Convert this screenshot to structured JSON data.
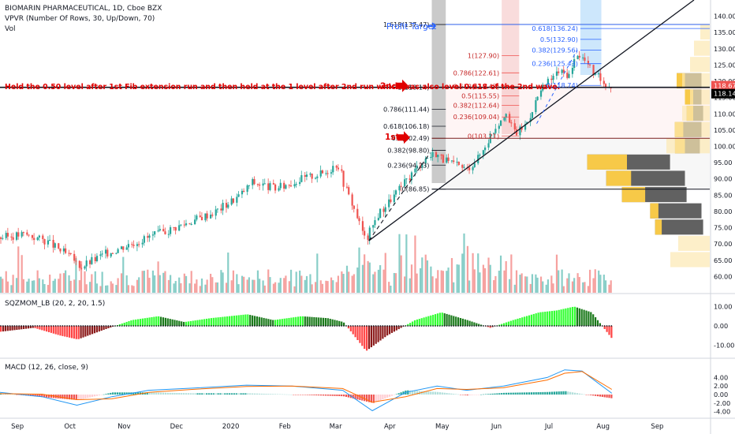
{
  "header": {
    "title": "BIOMARIN PHARMACEUTICAL, 1D, Cboe BZX",
    "vpvr": "VPVR (Number Of Rows, 30, Up/Down, 70)",
    "vol": "Vol"
  },
  "annotation": "Held the 0.50 level after 1st Fib extension run and then held at the 1 level after 2nd run which was also level 0.618 of the 2nd wave.",
  "markers": {
    "first": "1st",
    "second": "2nd",
    "target": "Profit Target"
  },
  "colors": {
    "up": "#26a69a",
    "down": "#ef5350",
    "red_text": "#e00000",
    "blue_text": "#2962ff"
  },
  "chart_data": [
    {
      "type": "candlestick",
      "title": "BIOMARIN PHARMACEUTICAL, 1D, Cboe BZX",
      "ylim": [
        55,
        145
      ],
      "yticks": [
        "60.00",
        "65.00",
        "70.00",
        "75.00",
        "80.00",
        "85.00",
        "90.00",
        "95.00",
        "100.00",
        "105.00",
        "110.00",
        "115.00",
        "120.00",
        "125.00",
        "130.00",
        "135.00",
        "140.00"
      ],
      "y_axis_step": 5,
      "x_tick_labels": [
        "Sep",
        "Oct",
        "Nov",
        "Dec",
        "2020",
        "Feb",
        "Mar",
        "Apr",
        "May",
        "Jun",
        "Jul",
        "Aug",
        "Sep"
      ],
      "price_badges": [
        {
          "value": "118.67",
          "color": "#ef5350"
        },
        {
          "value": "118.14",
          "color": "#000000"
        }
      ],
      "price_path": [
        [
          "2019-08-22",
          72
        ],
        [
          "2019-09-05",
          73
        ],
        [
          "2019-09-17",
          71
        ],
        [
          "2019-10-01",
          66
        ],
        [
          "2019-10-07",
          63
        ],
        [
          "2019-10-21",
          67
        ],
        [
          "2019-11-04",
          70
        ],
        [
          "2019-11-25",
          74
        ],
        [
          "2019-12-09",
          77
        ],
        [
          "2019-12-23",
          80
        ],
        [
          "2020-01-06",
          85
        ],
        [
          "2020-01-13",
          89
        ],
        [
          "2020-01-27",
          87
        ],
        [
          "2020-02-10",
          90
        ],
        [
          "2020-02-24",
          92
        ],
        [
          "2020-03-02",
          95
        ],
        [
          "2020-03-06",
          88
        ],
        [
          "2020-03-12",
          80
        ],
        [
          "2020-03-18",
          71
        ],
        [
          "2020-03-25",
          79
        ],
        [
          "2020-04-08",
          88
        ],
        [
          "2020-04-20",
          96
        ],
        [
          "2020-04-27",
          98
        ],
        [
          "2020-05-04",
          95
        ],
        [
          "2020-05-15",
          93
        ],
        [
          "2020-05-22",
          97
        ],
        [
          "2020-05-29",
          104
        ],
        [
          "2020-06-05",
          110
        ],
        [
          "2020-06-12",
          104
        ],
        [
          "2020-06-18",
          107
        ],
        [
          "2020-06-24",
          115
        ],
        [
          "2020-06-29",
          119
        ],
        [
          "2020-07-06",
          123
        ],
        [
          "2020-07-13",
          122
        ],
        [
          "2020-07-17",
          129
        ],
        [
          "2020-07-22",
          126
        ],
        [
          "2020-07-27",
          122
        ],
        [
          "2020-08-03",
          119
        ],
        [
          "2020-08-06",
          118.5
        ]
      ],
      "fib_set_1": {
        "label_prefix_color": "#131722",
        "levels": [
          {
            "label": "1.618(137.47)",
            "value": 137.47
          },
          {
            "label": "1(118.14)",
            "value": 118.14
          },
          {
            "label": "0.786(111.44)",
            "value": 111.44
          },
          {
            "label": "0.618(106.18)",
            "value": 106.18
          },
          {
            "label": "0.5(102.49)",
            "value": 102.49
          },
          {
            "label": "0.382(98.80)",
            "value": 98.8
          },
          {
            "label": "0.236(94.23)",
            "value": 94.23
          },
          {
            "label": "0(86.85)",
            "value": 86.85
          }
        ]
      },
      "fib_set_2": {
        "levels": [
          {
            "label": "1(127.90)",
            "value": 127.9
          },
          {
            "label": "0.786(122.61)",
            "value": 122.61
          },
          {
            "label": "0.618(118.47)",
            "value": 118.47
          },
          {
            "label": "0.5(115.55)",
            "value": 115.55
          },
          {
            "label": "0.382(112.64)",
            "value": 112.64
          },
          {
            "label": "0.236(109.04)",
            "value": 109.04
          },
          {
            "label": "0(103.21)",
            "value": 103.21
          }
        ]
      },
      "fib_set_3": {
        "levels": [
          {
            "label": "0.618(136.24)",
            "value": 136.24
          },
          {
            "label": "0.5(132.90)",
            "value": 132.9
          },
          {
            "label": "0.382(129.56)",
            "value": 129.56
          },
          {
            "label": "0.236(125.43)",
            "value": 125.43
          },
          {
            "label": "0(118.74)",
            "value": 118.74
          }
        ]
      },
      "volume_profile": [
        {
          "price": 75,
          "up": 8,
          "down": 58
        },
        {
          "price": 80,
          "up": 10,
          "down": 62
        },
        {
          "price": 85,
          "up": 28,
          "down": 78
        },
        {
          "price": 90,
          "up": 30,
          "down": 95
        },
        {
          "price": 95,
          "up": 48,
          "down": 100
        },
        {
          "price": 100,
          "up": 12,
          "down": 30
        },
        {
          "price": 105,
          "up": 10,
          "down": 32
        },
        {
          "price": 110,
          "up": 8,
          "down": 20
        },
        {
          "price": 115,
          "up": 10,
          "down": 20
        },
        {
          "price": 120,
          "up": 10,
          "down": 30
        }
      ]
    },
    {
      "type": "bar",
      "title": "SQZMOM_LB (20, 2, 20, 1.5)",
      "ylim": [
        -15,
        15
      ],
      "yticks": [
        "10.00",
        "0.00",
        "-10.00"
      ],
      "profile": [
        [
          "2019-08-22",
          -3
        ],
        [
          "2019-09-10",
          -1
        ],
        [
          "2019-09-25",
          -5
        ],
        [
          "2019-10-05",
          -7
        ],
        [
          "2019-10-20",
          -2
        ],
        [
          "2019-11-05",
          3
        ],
        [
          "2019-11-20",
          5
        ],
        [
          "2019-12-05",
          2
        ],
        [
          "2019-12-20",
          4
        ],
        [
          "2020-01-10",
          6
        ],
        [
          "2020-01-25",
          3
        ],
        [
          "2020-02-10",
          5
        ],
        [
          "2020-02-25",
          4
        ],
        [
          "2020-03-05",
          2
        ],
        [
          "2020-03-18",
          -13
        ],
        [
          "2020-03-30",
          -5
        ],
        [
          "2020-04-15",
          3
        ],
        [
          "2020-04-30",
          7
        ],
        [
          "2020-05-15",
          3
        ],
        [
          "2020-05-28",
          -1
        ],
        [
          "2020-06-10",
          3
        ],
        [
          "2020-06-25",
          7
        ],
        [
          "2020-07-05",
          8
        ],
        [
          "2020-07-15",
          10
        ],
        [
          "2020-07-25",
          7
        ],
        [
          "2020-08-06",
          -7
        ]
      ]
    },
    {
      "type": "line",
      "title": "MACD (12, 26, close, 9)",
      "ylim": [
        -5,
        7
      ],
      "yticks": [
        "4.00",
        "2.00",
        "0.00",
        "-2.00",
        "-4.00"
      ],
      "series": [
        {
          "name": "MACD",
          "color": "#2196f3",
          "values": [
            [
              "2019-08-22",
              0.5
            ],
            [
              "2019-09-15",
              -0.5
            ],
            [
              "2019-10-05",
              -2.5
            ],
            [
              "2019-10-25",
              -0.5
            ],
            [
              "2019-11-15",
              1
            ],
            [
              "2019-12-10",
              1.5
            ],
            [
              "2020-01-10",
              2.2
            ],
            [
              "2020-02-05",
              2
            ],
            [
              "2020-03-05",
              1
            ],
            [
              "2020-03-22",
              -3.8
            ],
            [
              "2020-04-10",
              0.5
            ],
            [
              "2020-04-28",
              2
            ],
            [
              "2020-05-15",
              1
            ],
            [
              "2020-06-05",
              2
            ],
            [
              "2020-06-30",
              4
            ],
            [
              "2020-07-10",
              5.8
            ],
            [
              "2020-07-20",
              5.5
            ],
            [
              "2020-08-06",
              0.3
            ]
          ]
        },
        {
          "name": "Signal",
          "color": "#ff6d00",
          "values": [
            [
              "2019-08-22",
              0.2
            ],
            [
              "2019-09-15",
              0.1
            ],
            [
              "2019-10-05",
              -1.2
            ],
            [
              "2019-10-25",
              -1
            ],
            [
              "2019-11-15",
              0.5
            ],
            [
              "2019-12-10",
              1.2
            ],
            [
              "2020-01-10",
              1.9
            ],
            [
              "2020-02-05",
              2
            ],
            [
              "2020-03-05",
              1.4
            ],
            [
              "2020-03-22",
              -1.8
            ],
            [
              "2020-04-10",
              -0.5
            ],
            [
              "2020-04-28",
              1.4
            ],
            [
              "2020-05-15",
              1.2
            ],
            [
              "2020-06-05",
              1.6
            ],
            [
              "2020-06-30",
              3.4
            ],
            [
              "2020-07-10",
              5
            ],
            [
              "2020-07-20",
              5.4
            ],
            [
              "2020-08-06",
              1.2
            ]
          ]
        }
      ]
    }
  ]
}
